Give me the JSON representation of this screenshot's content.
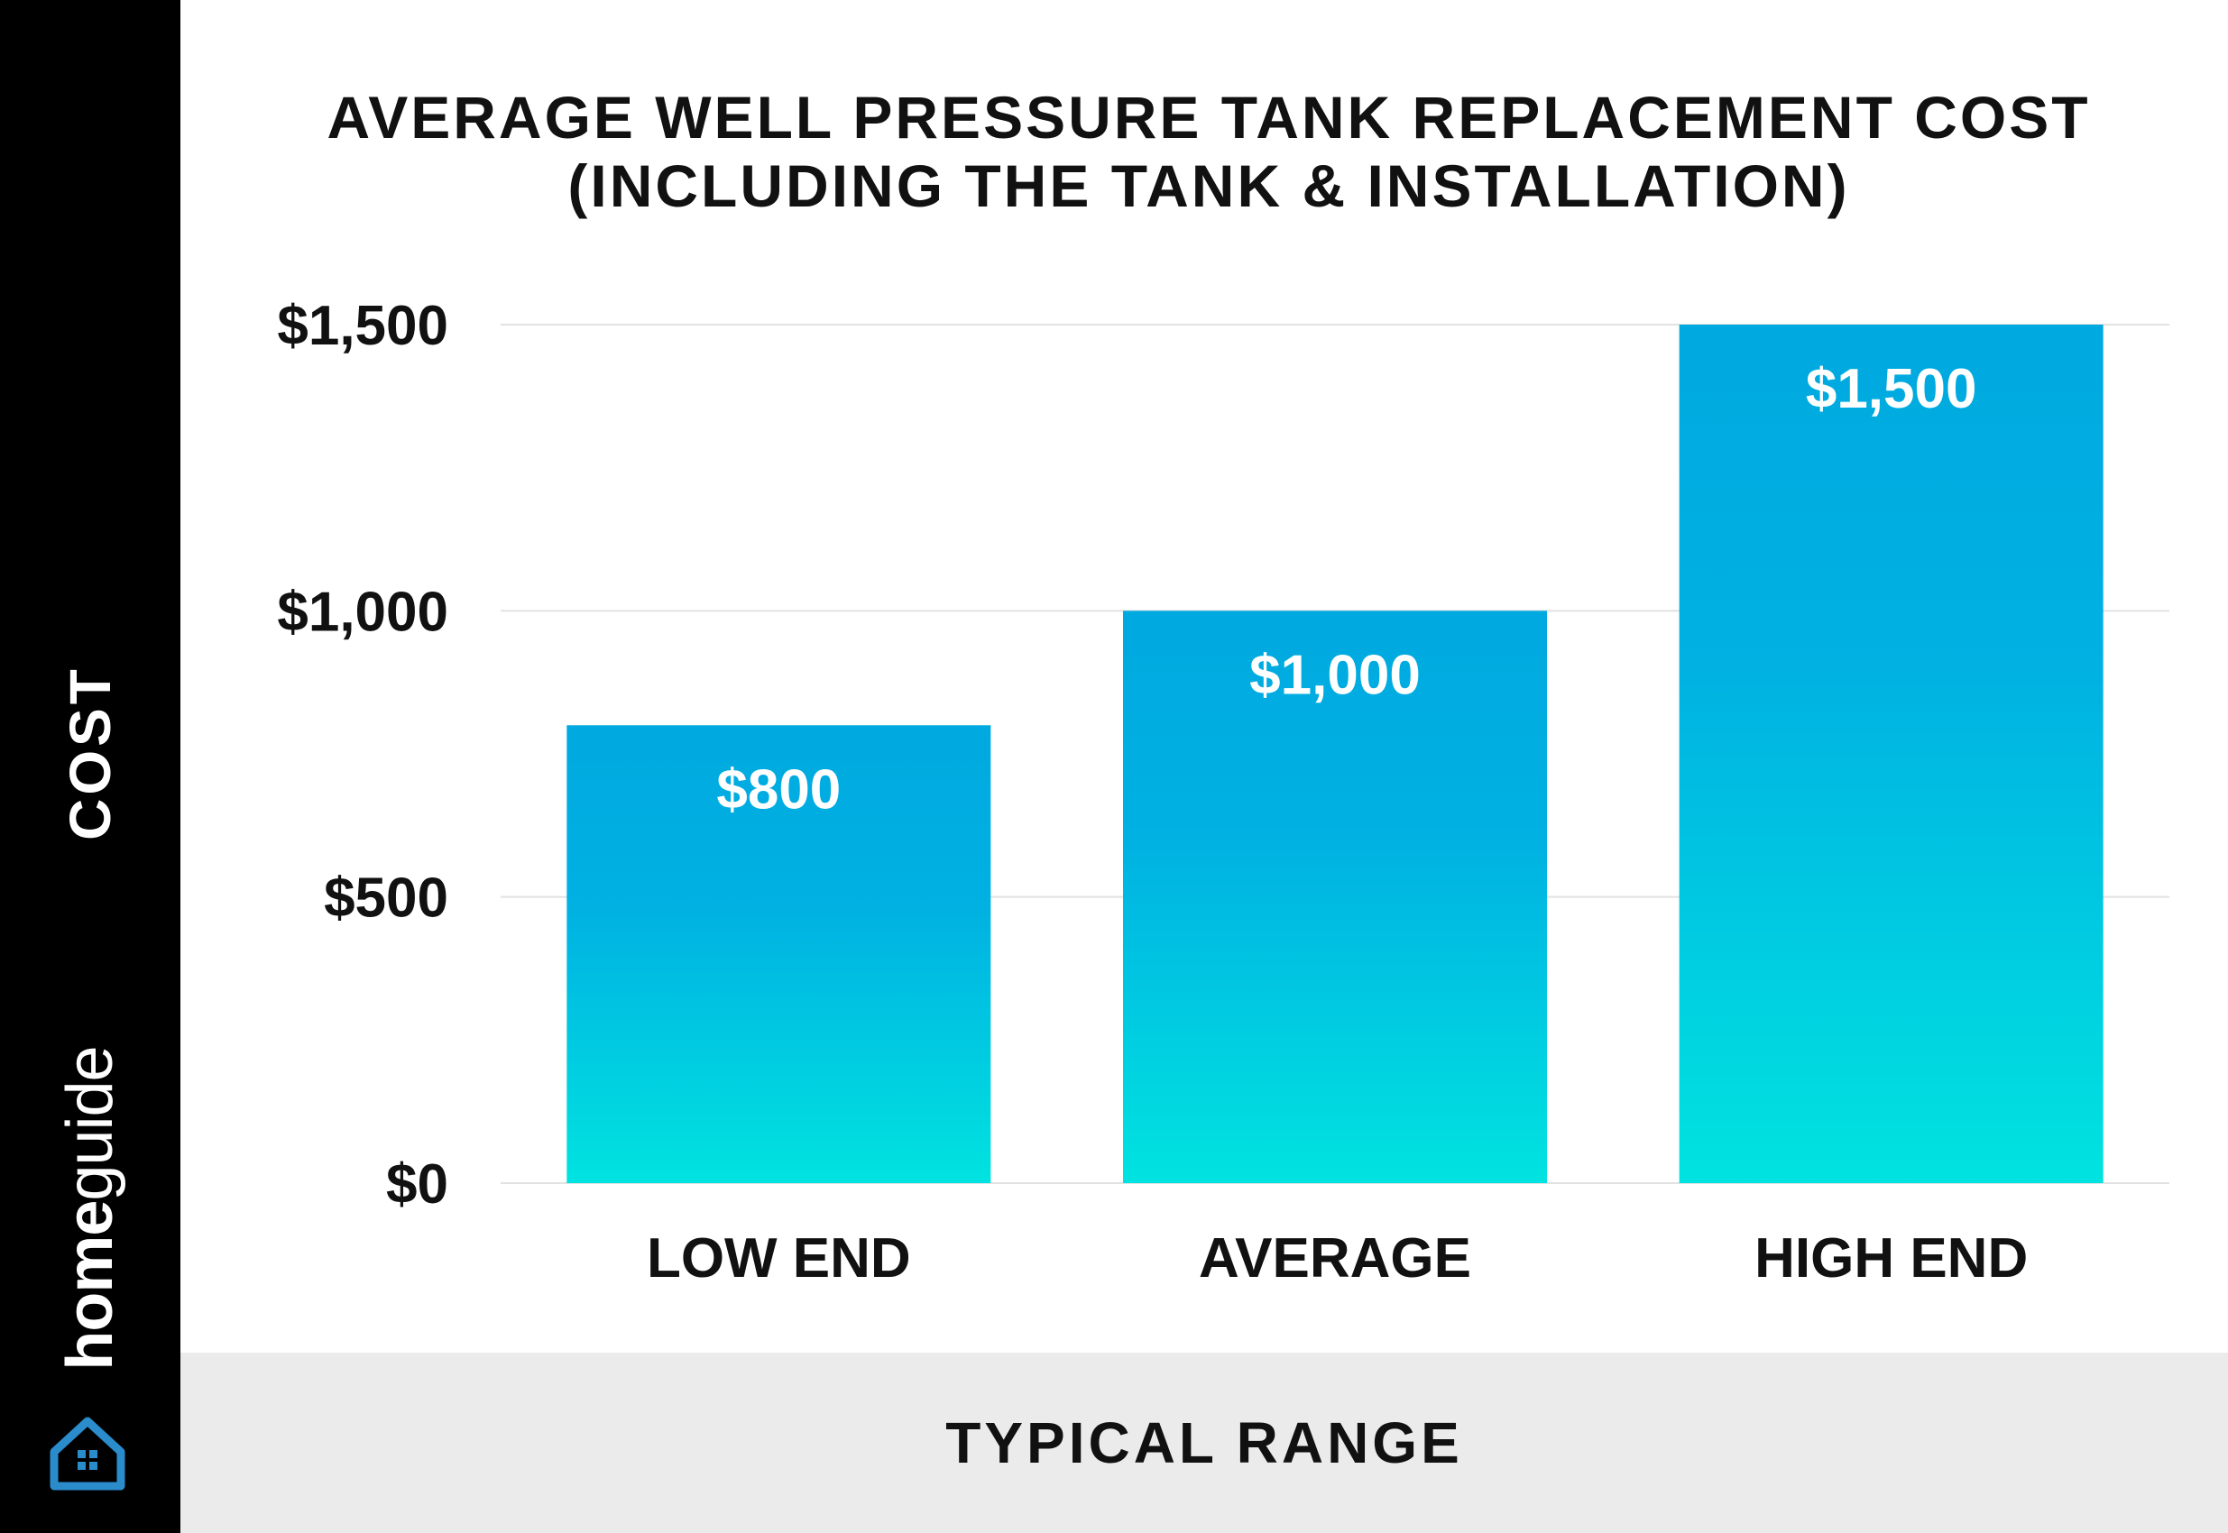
{
  "brand": {
    "name_bold": "home",
    "name_light": "guide"
  },
  "colors": {
    "bar_top": "#00a9e0",
    "bar_bottom": "#00e3e0",
    "sidebar": "#000000",
    "footer": "#ebebeb",
    "gridline": "#e2e2e2",
    "logo": "#2b8ccc"
  },
  "icons": {
    "logo": "house-icon"
  },
  "chart_data": {
    "type": "bar",
    "title_lines": [
      "AVERAGE WELL PRESSURE TANK REPLACEMENT COST",
      "(INCLUDING THE TANK & INSTALLATION)"
    ],
    "xlabel": "TYPICAL RANGE",
    "ylabel": "COST",
    "categories": [
      "LOW END",
      "AVERAGE",
      "HIGH END"
    ],
    "values": [
      800,
      1000,
      1500
    ],
    "value_labels": [
      "$800",
      "$1,000",
      "$1,500"
    ],
    "ylim": [
      0,
      1500
    ],
    "yticks": [
      0,
      500,
      1000,
      1500
    ],
    "ytick_labels": [
      "$0",
      "$500",
      "$1,000",
      "$1,500"
    ],
    "grid": true,
    "legend": "none"
  }
}
